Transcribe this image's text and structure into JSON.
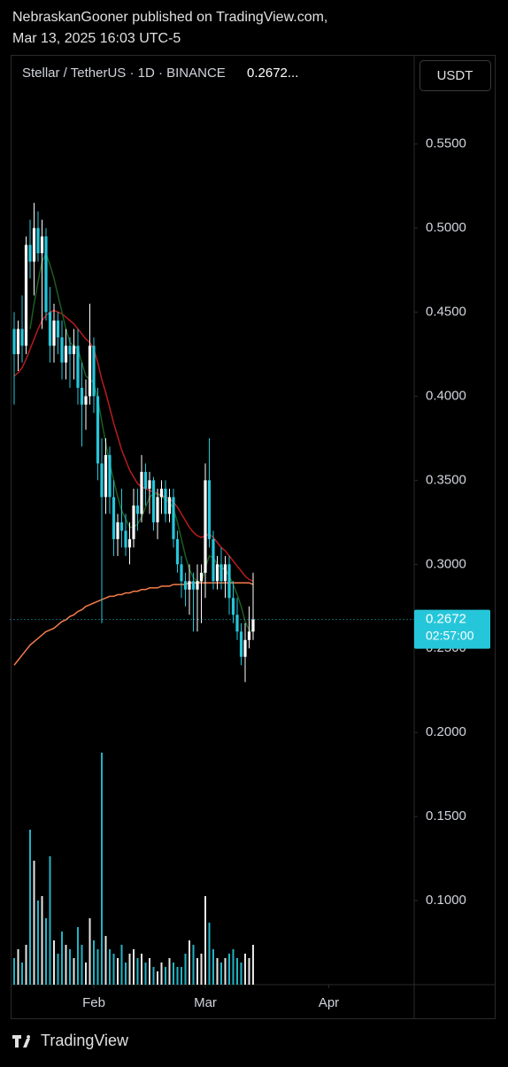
{
  "header": {
    "author_line": "NebraskanGooner published on TradingView.com,",
    "date_line": "Mar 13, 2025 16:03 UTC-5"
  },
  "footer": {
    "brand": "TradingView"
  },
  "chart_data": {
    "type": "candlestick",
    "title": "Stellar / TetherUS · 1D · BINANCE",
    "title_price": "0.2672...",
    "currency": "USDT",
    "last_price": 0.2672,
    "countdown": "02:57:00",
    "up_color": "#ffffff",
    "down_color": "#26c6da",
    "xlim": [
      -1,
      100
    ],
    "xticks": [
      {
        "value": 20,
        "label": "Feb"
      },
      {
        "value": 48,
        "label": "Mar"
      },
      {
        "value": 79,
        "label": "Apr"
      }
    ],
    "ylim": [
      0.05,
      0.603
    ],
    "yticks": [
      {
        "value": 0.55,
        "label": "0.5500"
      },
      {
        "value": 0.5,
        "label": "0.5000"
      },
      {
        "value": 0.45,
        "label": "0.4500"
      },
      {
        "value": 0.4,
        "label": "0.4000"
      },
      {
        "value": 0.35,
        "label": "0.3500"
      },
      {
        "value": 0.3,
        "label": "0.3000"
      },
      {
        "value": 0.25,
        "label": "0.2500"
      },
      {
        "value": 0.2,
        "label": "0.2000"
      },
      {
        "value": 0.15,
        "label": "0.1500"
      },
      {
        "value": 0.1,
        "label": "0.1000"
      }
    ],
    "open": [
      0.44,
      0.425,
      0.44,
      0.43,
      0.49,
      0.48,
      0.5,
      0.485,
      0.495,
      0.45,
      0.43,
      0.445,
      0.435,
      0.42,
      0.43,
      0.425,
      0.43,
      0.405,
      0.395,
      0.4,
      0.43,
      0.4,
      0.36,
      0.34,
      0.365,
      0.34,
      0.315,
      0.325,
      0.32,
      0.31,
      0.315,
      0.335,
      0.33,
      0.355,
      0.345,
      0.35,
      0.325,
      0.34,
      0.345,
      0.33,
      0.34,
      0.315,
      0.3,
      0.29,
      0.285,
      0.29,
      0.285,
      0.29,
      0.295,
      0.35,
      0.315,
      0.29,
      0.3,
      0.29,
      0.3,
      0.28,
      0.27,
      0.26,
      0.245,
      0.255,
      0.26
    ],
    "high": [
      0.45,
      0.445,
      0.46,
      0.495,
      0.505,
      0.515,
      0.51,
      0.505,
      0.5,
      0.465,
      0.455,
      0.45,
      0.445,
      0.44,
      0.435,
      0.44,
      0.44,
      0.42,
      0.41,
      0.455,
      0.435,
      0.405,
      0.375,
      0.375,
      0.37,
      0.35,
      0.33,
      0.345,
      0.33,
      0.325,
      0.345,
      0.345,
      0.365,
      0.36,
      0.355,
      0.352,
      0.345,
      0.35,
      0.35,
      0.345,
      0.345,
      0.32,
      0.305,
      0.295,
      0.3,
      0.295,
      0.3,
      0.3,
      0.36,
      0.375,
      0.32,
      0.305,
      0.31,
      0.305,
      0.305,
      0.29,
      0.28,
      0.265,
      0.265,
      0.275,
      0.295
    ],
    "low": [
      0.395,
      0.415,
      0.42,
      0.425,
      0.47,
      0.46,
      0.48,
      0.44,
      0.445,
      0.42,
      0.42,
      0.425,
      0.41,
      0.41,
      0.405,
      0.41,
      0.395,
      0.37,
      0.38,
      0.395,
      0.39,
      0.35,
      0.265,
      0.33,
      0.33,
      0.305,
      0.305,
      0.31,
      0.305,
      0.3,
      0.31,
      0.32,
      0.325,
      0.335,
      0.33,
      0.32,
      0.315,
      0.33,
      0.325,
      0.325,
      0.31,
      0.295,
      0.28,
      0.275,
      0.27,
      0.26,
      0.26,
      0.265,
      0.28,
      0.31,
      0.285,
      0.285,
      0.285,
      0.28,
      0.27,
      0.265,
      0.255,
      0.24,
      0.23,
      0.25,
      0.255
    ],
    "close": [
      0.425,
      0.44,
      0.43,
      0.49,
      0.48,
      0.5,
      0.485,
      0.495,
      0.45,
      0.43,
      0.445,
      0.435,
      0.42,
      0.43,
      0.425,
      0.43,
      0.405,
      0.395,
      0.4,
      0.43,
      0.4,
      0.36,
      0.34,
      0.365,
      0.34,
      0.315,
      0.325,
      0.32,
      0.31,
      0.315,
      0.335,
      0.33,
      0.355,
      0.345,
      0.35,
      0.325,
      0.34,
      0.345,
      0.33,
      0.34,
      0.315,
      0.3,
      0.29,
      0.285,
      0.29,
      0.285,
      0.29,
      0.295,
      0.35,
      0.315,
      0.29,
      0.3,
      0.29,
      0.3,
      0.28,
      0.27,
      0.26,
      0.245,
      0.255,
      0.26,
      0.2672
    ],
    "volume": [
      30,
      40,
      25,
      45,
      175,
      140,
      95,
      100,
      75,
      145,
      50,
      35,
      60,
      45,
      40,
      30,
      65,
      45,
      25,
      75,
      50,
      40,
      262,
      55,
      40,
      35,
      30,
      45,
      25,
      35,
      40,
      30,
      35,
      25,
      30,
      20,
      15,
      25,
      20,
      30,
      25,
      20,
      20,
      35,
      50,
      45,
      30,
      35,
      100,
      70,
      40,
      30,
      25,
      30,
      35,
      40,
      30,
      25,
      35,
      30,
      45
    ],
    "lines": [
      {
        "color": "#b71c1c",
        "values": [
          0.412,
          0.414,
          0.417,
          0.422,
          0.428,
          0.434,
          0.44,
          0.445,
          0.448,
          0.45,
          0.451,
          0.45,
          0.449,
          0.447,
          0.445,
          0.443,
          0.44,
          0.437,
          0.434,
          0.432,
          0.428,
          0.42,
          0.41,
          0.402,
          0.393,
          0.384,
          0.376,
          0.368,
          0.362,
          0.356,
          0.352,
          0.348,
          0.346,
          0.345,
          0.344,
          0.343,
          0.342,
          0.341,
          0.34,
          0.339,
          0.337,
          0.334,
          0.33,
          0.326,
          0.322,
          0.319,
          0.317,
          0.316,
          0.317,
          0.318,
          0.316,
          0.313,
          0.31,
          0.308,
          0.305,
          0.302,
          0.299,
          0.296,
          0.293,
          0.291,
          0.29
        ]
      },
      {
        "color": "#1b5e20",
        "values": [
          null,
          null,
          null,
          null,
          0.44,
          0.455,
          0.468,
          0.48,
          0.485,
          0.478,
          0.47,
          0.46,
          0.45,
          0.44,
          0.432,
          0.43,
          0.428,
          0.42,
          0.412,
          0.41,
          0.408,
          0.398,
          0.385,
          0.372,
          0.36,
          0.35,
          0.34,
          0.332,
          0.327,
          0.322,
          0.322,
          0.324,
          0.328,
          0.334,
          0.34,
          0.342,
          0.342,
          0.34,
          0.339,
          0.337,
          0.333,
          0.325,
          0.315,
          0.305,
          0.297,
          0.292,
          0.29,
          0.289,
          0.298,
          0.305,
          0.304,
          0.3,
          0.298,
          0.297,
          0.293,
          0.288,
          0.282,
          0.275,
          0.266,
          0.261,
          0.26
        ]
      },
      {
        "color": "#f57c4a",
        "values": [
          0.24,
          0.243,
          0.246,
          0.249,
          0.252,
          0.254,
          0.256,
          0.258,
          0.26,
          0.261,
          0.262,
          0.264,
          0.266,
          0.267,
          0.269,
          0.27,
          0.272,
          0.273,
          0.275,
          0.276,
          0.277,
          0.278,
          0.279,
          0.28,
          0.281,
          0.281,
          0.282,
          0.282,
          0.283,
          0.283,
          0.284,
          0.284,
          0.285,
          0.285,
          0.286,
          0.286,
          0.286,
          0.287,
          0.287,
          0.287,
          0.288,
          0.288,
          0.288,
          0.288,
          0.289,
          0.289,
          0.289,
          0.289,
          0.289,
          0.289,
          0.289,
          0.289,
          0.289,
          0.289,
          0.289,
          0.289,
          0.289,
          0.289,
          0.289,
          0.289,
          0.288
        ]
      }
    ]
  }
}
